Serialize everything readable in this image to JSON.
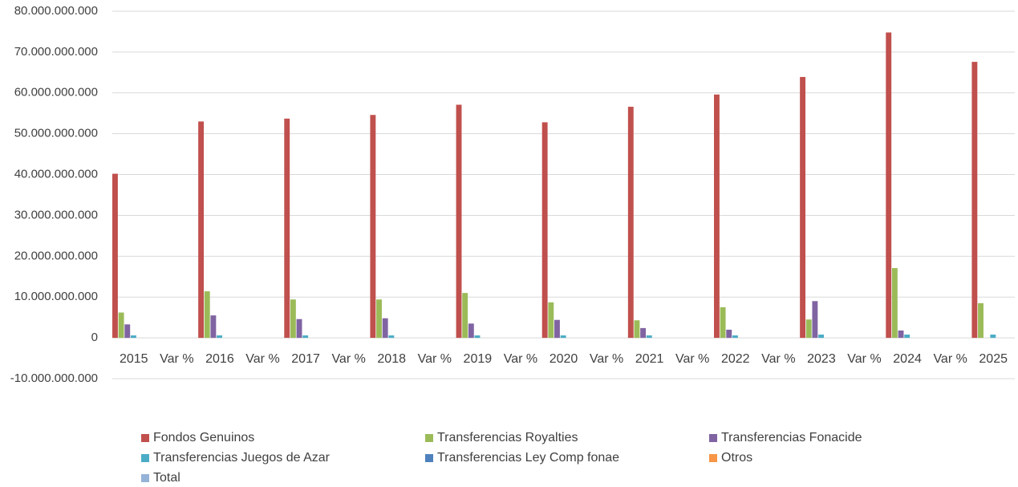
{
  "chart_data": {
    "type": "bar",
    "categories": [
      "2015",
      "Var %",
      "2016",
      "Var %",
      "2017",
      "Var %",
      "2018",
      "Var %",
      "2019",
      "Var %",
      "2020",
      "Var %",
      "2021",
      "Var %",
      "2022",
      "Var %",
      "2023",
      "Var %",
      "2024",
      "Var %",
      "2025"
    ],
    "series": [
      {
        "name": "Fondos Genuinos",
        "color": "#c0504d",
        "values": [
          40200000000,
          null,
          53000000000,
          null,
          53700000000,
          null,
          54600000000,
          null,
          57100000000,
          null,
          52800000000,
          null,
          56600000000,
          null,
          59600000000,
          null,
          63900000000,
          null,
          74800000000,
          null,
          67600000000
        ]
      },
      {
        "name": "Transferencias Royalties",
        "color": "#9bbb59",
        "values": [
          6200000000,
          null,
          11400000000,
          null,
          9400000000,
          null,
          9400000000,
          null,
          11000000000,
          null,
          8700000000,
          null,
          4300000000,
          null,
          7500000000,
          null,
          4500000000,
          null,
          17100000000,
          null,
          8500000000
        ]
      },
      {
        "name": "Transferencias Fonacide",
        "color": "#8064a2",
        "values": [
          3300000000,
          null,
          5500000000,
          null,
          4600000000,
          null,
          4800000000,
          null,
          3500000000,
          null,
          4400000000,
          null,
          2400000000,
          null,
          2000000000,
          null,
          9000000000,
          null,
          1800000000,
          null,
          null
        ]
      },
      {
        "name": "Transferencias Juegos de Azar",
        "color": "#4bacc6",
        "values": [
          600000000,
          null,
          600000000,
          null,
          600000000,
          null,
          600000000,
          null,
          600000000,
          null,
          600000000,
          null,
          600000000,
          null,
          600000000,
          null,
          800000000,
          null,
          800000000,
          null,
          800000000
        ]
      },
      {
        "name": "Transferencias Ley Comp fonae",
        "color": "#4f81bd",
        "values": [
          null,
          null,
          null,
          null,
          null,
          null,
          null,
          null,
          null,
          null,
          null,
          null,
          null,
          null,
          null,
          null,
          null,
          null,
          null,
          null,
          null
        ]
      },
      {
        "name": "Otros",
        "color": "#f79646",
        "values": [
          null,
          null,
          null,
          null,
          null,
          null,
          null,
          null,
          null,
          null,
          null,
          null,
          null,
          null,
          null,
          null,
          null,
          null,
          null,
          null,
          null
        ]
      },
      {
        "name": "Total",
        "color": "#95b3d7",
        "values": [
          null,
          null,
          null,
          null,
          null,
          null,
          null,
          null,
          null,
          null,
          null,
          null,
          null,
          null,
          null,
          null,
          null,
          null,
          null,
          null,
          null
        ]
      }
    ],
    "ylim": [
      -10000000000,
      80000000000
    ],
    "yticks": [
      {
        "value": -10000000000,
        "label": "-10.000.000.000"
      },
      0,
      {
        "value": 10000000000,
        "label": "10.000.000.000"
      },
      {
        "value": 20000000000,
        "label": "20.000.000.000"
      },
      {
        "value": 30000000000,
        "label": "30.000.000.000"
      },
      {
        "value": 40000000000,
        "label": "40.000.000.000"
      },
      {
        "value": 50000000000,
        "label": "50.000.000.000"
      },
      {
        "value": 60000000000,
        "label": "60.000.000.000"
      },
      {
        "value": 70000000000,
        "label": "70.000.000.000"
      },
      {
        "value": 80000000000,
        "label": "80.000.000.000"
      }
    ],
    "grid": true,
    "legend": "bottom"
  }
}
